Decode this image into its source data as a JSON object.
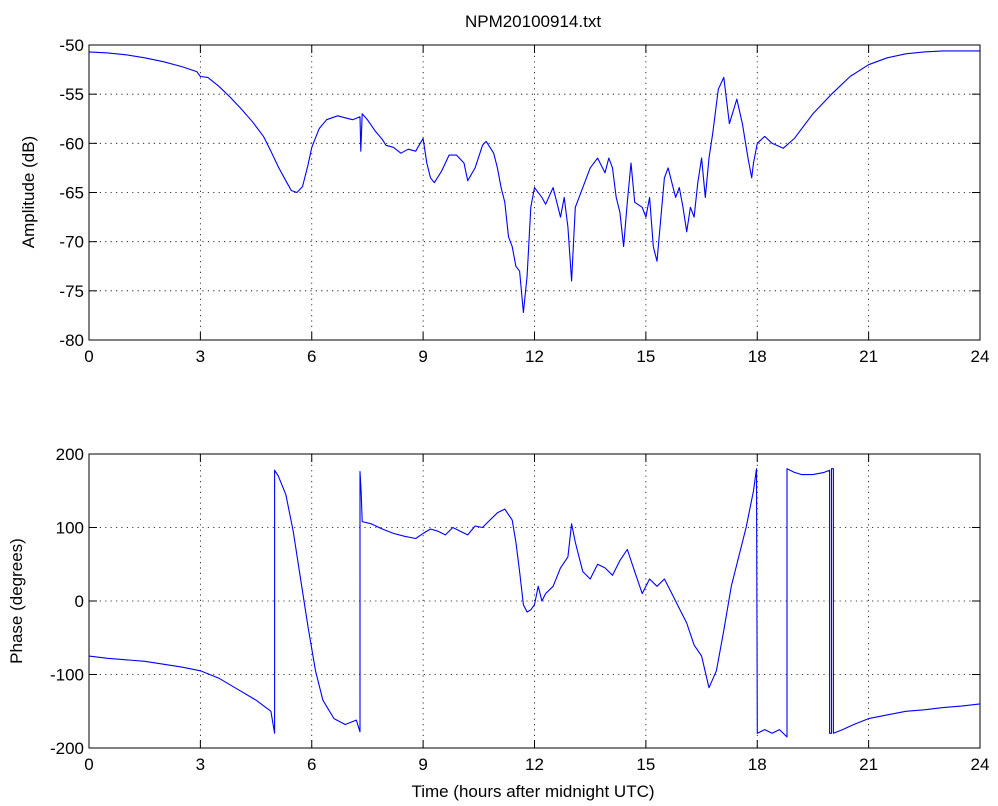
{
  "figure": {
    "title": "NPM20100914.txt",
    "line_color": "#0000ff",
    "grid": "dotted"
  },
  "chart_data": [
    {
      "type": "line",
      "title": "NPM20100914.txt",
      "xlabel": "",
      "ylabel": "Amplitude (dB)",
      "xlim": [
        0,
        24
      ],
      "ylim": [
        -80,
        -50
      ],
      "xticks": [
        0,
        3,
        6,
        9,
        12,
        15,
        18,
        21,
        24
      ],
      "yticks": [
        -80,
        -75,
        -70,
        -65,
        -60,
        -55,
        -50
      ],
      "grid": true,
      "series": [
        {
          "color": "#0000ff",
          "x": [
            0,
            0.5,
            1,
            1.5,
            2,
            2.5,
            2.9,
            3.0,
            3.2,
            3.5,
            3.8,
            4.1,
            4.4,
            4.7,
            4.9,
            5.1,
            5.3,
            5.45,
            5.6,
            5.75,
            5.9,
            6.0,
            6.2,
            6.4,
            6.7,
            6.9,
            7.1,
            7.3,
            7.32,
            7.36,
            7.5,
            7.7,
            7.9,
            8.0,
            8.2,
            8.4,
            8.6,
            8.8,
            9.0,
            9.1,
            9.2,
            9.3,
            9.5,
            9.7,
            9.9,
            10.1,
            10.2,
            10.4,
            10.6,
            10.7,
            10.9,
            11.0,
            11.1,
            11.2,
            11.3,
            11.4,
            11.5,
            11.6,
            11.7,
            11.8,
            11.9,
            12.0,
            12.2,
            12.3,
            12.5,
            12.6,
            12.7,
            12.8,
            12.9,
            13.0,
            13.1,
            13.3,
            13.5,
            13.7,
            13.9,
            14.0,
            14.1,
            14.2,
            14.3,
            14.4,
            14.5,
            14.6,
            14.7,
            14.9,
            15.0,
            15.1,
            15.2,
            15.3,
            15.5,
            15.6,
            15.8,
            15.9,
            16.0,
            16.1,
            16.2,
            16.3,
            16.4,
            16.5,
            16.6,
            16.7,
            16.8,
            16.95,
            17.1,
            17.25,
            17.45,
            17.6,
            17.75,
            17.85,
            17.9,
            18.0,
            18.2,
            18.4,
            18.7,
            19.0,
            19.5,
            20.0,
            20.5,
            21.0,
            21.5,
            22.0,
            22.5,
            23.0,
            23.5,
            24.0
          ],
          "y": [
            -50.7,
            -50.8,
            -51.0,
            -51.3,
            -51.7,
            -52.2,
            -52.7,
            -53.2,
            -53.3,
            -54.2,
            -55.3,
            -56.5,
            -57.8,
            -59.3,
            -60.8,
            -62.4,
            -63.8,
            -64.8,
            -65.0,
            -64.4,
            -62.2,
            -60.4,
            -58.5,
            -57.6,
            -57.2,
            -57.4,
            -57.6,
            -57.3,
            -60.8,
            -57.0,
            -57.6,
            -58.7,
            -59.6,
            -60.2,
            -60.4,
            -61.0,
            -60.6,
            -60.8,
            -59.5,
            -62.0,
            -63.5,
            -64.0,
            -62.8,
            -61.2,
            -61.2,
            -62.0,
            -63.8,
            -62.5,
            -60.2,
            -59.8,
            -61.0,
            -62.5,
            -64.5,
            -66.0,
            -69.5,
            -70.5,
            -72.5,
            -73.0,
            -77.2,
            -73.5,
            -66.5,
            -64.5,
            -65.5,
            -66.2,
            -64.5,
            -66.0,
            -67.5,
            -65.5,
            -68.5,
            -74.0,
            -66.5,
            -64.5,
            -62.5,
            -61.5,
            -63.0,
            -61.5,
            -62.5,
            -65.5,
            -67.0,
            -70.5,
            -66.0,
            -62.0,
            -66.0,
            -66.5,
            -67.5,
            -65.5,
            -70.5,
            -72.0,
            -63.5,
            -62.5,
            -65.5,
            -64.5,
            -66.5,
            -69.0,
            -66.5,
            -67.5,
            -64.0,
            -61.5,
            -65.5,
            -61.5,
            -59.0,
            -54.5,
            -53.3,
            -58.0,
            -55.5,
            -58.0,
            -61.5,
            -63.5,
            -62.0,
            -60.0,
            -59.3,
            -60.0,
            -60.5,
            -59.5,
            -57.0,
            -55.0,
            -53.2,
            -52.0,
            -51.3,
            -50.9,
            -50.7,
            -50.6,
            -50.6,
            -50.6
          ]
        }
      ]
    },
    {
      "type": "line",
      "title": "",
      "xlabel": "Time (hours after midnight UTC)",
      "ylabel": "Phase (degrees)",
      "xlim": [
        0,
        24
      ],
      "ylim": [
        -200,
        200
      ],
      "xticks": [
        0,
        3,
        6,
        9,
        12,
        15,
        18,
        21,
        24
      ],
      "yticks": [
        -200,
        -100,
        0,
        100,
        200
      ],
      "grid": true,
      "series": [
        {
          "color": "#0000ff",
          "x": [
            0,
            0.5,
            1,
            1.5,
            2,
            2.5,
            3,
            3.5,
            4,
            4.5,
            4.9,
            5.0,
            5.0,
            5.1,
            5.3,
            5.5,
            5.7,
            5.9,
            6.1,
            6.3,
            6.6,
            6.9,
            7.2,
            7.3,
            7.3,
            7.33,
            7.36,
            7.6,
            7.9,
            8.2,
            8.5,
            8.8,
            9.0,
            9.2,
            9.4,
            9.6,
            9.8,
            10.0,
            10.2,
            10.4,
            10.6,
            10.8,
            11.0,
            11.2,
            11.4,
            11.5,
            11.6,
            11.7,
            11.8,
            11.9,
            12.0,
            12.1,
            12.2,
            12.3,
            12.5,
            12.7,
            12.9,
            13.0,
            13.1,
            13.3,
            13.5,
            13.7,
            13.9,
            14.1,
            14.3,
            14.5,
            14.7,
            14.9,
            15.1,
            15.3,
            15.5,
            15.7,
            15.9,
            16.1,
            16.3,
            16.5,
            16.7,
            16.9,
            17.1,
            17.3,
            17.5,
            17.7,
            17.9,
            17.98,
            18.0,
            18.0,
            18.2,
            18.4,
            18.6,
            18.8,
            18.8,
            19.0,
            19.2,
            19.5,
            19.8,
            19.95,
            19.95,
            20.0,
            20.0,
            20.05,
            20.05,
            20.3,
            20.6,
            21.0,
            21.5,
            22.0,
            22.5,
            23.0,
            23.5,
            24.0
          ],
          "y": [
            -75,
            -78,
            -80,
            -82,
            -86,
            -90,
            -95,
            -105,
            -120,
            -135,
            -150,
            -180,
            178,
            170,
            145,
            95,
            30,
            -35,
            -95,
            -135,
            -160,
            -168,
            -162,
            -178,
            176,
            150,
            108,
            105,
            98,
            92,
            88,
            85,
            92,
            98,
            95,
            90,
            100,
            95,
            90,
            102,
            100,
            110,
            120,
            125,
            110,
            80,
            40,
            -5,
            -15,
            -12,
            -5,
            20,
            0,
            10,
            20,
            45,
            60,
            105,
            80,
            40,
            30,
            50,
            45,
            35,
            55,
            70,
            40,
            10,
            30,
            20,
            30,
            10,
            -10,
            -30,
            -60,
            -75,
            -118,
            -95,
            -40,
            20,
            60,
            100,
            150,
            180,
            -180,
            -180,
            -175,
            -180,
            -175,
            -185,
            180,
            175,
            172,
            172,
            175,
            178,
            -180,
            -180,
            180,
            180,
            -180,
            -175,
            -168,
            -160,
            -155,
            -150,
            -148,
            -145,
            -143,
            -140
          ]
        }
      ]
    }
  ]
}
